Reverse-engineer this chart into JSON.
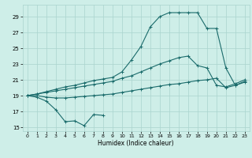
{
  "background_color": "#ceeee8",
  "grid_color": "#aad4ce",
  "line_color": "#1a6b6b",
  "xlabel": "Humidex (Indice chaleur)",
  "xlim": [
    -0.5,
    23.5
  ],
  "ylim": [
    14.5,
    30.5
  ],
  "xticks": [
    0,
    1,
    2,
    3,
    4,
    5,
    6,
    7,
    8,
    9,
    10,
    11,
    12,
    13,
    14,
    15,
    16,
    17,
    18,
    19,
    20,
    21,
    22,
    23
  ],
  "yticks": [
    15,
    17,
    19,
    21,
    23,
    25,
    27,
    29
  ],
  "line_zigzag_x": [
    0,
    1,
    2,
    3,
    4,
    5,
    6,
    7,
    8
  ],
  "line_zigzag_y": [
    19.0,
    18.8,
    18.3,
    17.2,
    15.7,
    15.8,
    15.2,
    16.6,
    16.5
  ],
  "line_low_x": [
    0,
    1,
    2,
    3,
    4,
    5,
    6,
    7,
    8,
    9,
    10,
    11,
    12,
    13,
    14,
    15,
    16,
    17,
    18,
    19,
    20,
    21,
    22,
    23
  ],
  "line_low_y": [
    19.0,
    19.0,
    18.8,
    18.7,
    18.7,
    18.8,
    18.9,
    19.0,
    19.1,
    19.2,
    19.4,
    19.6,
    19.8,
    20.0,
    20.2,
    20.4,
    20.5,
    20.7,
    20.9,
    21.0,
    21.2,
    20.0,
    20.3,
    20.7
  ],
  "line_mid_x": [
    0,
    1,
    2,
    3,
    4,
    5,
    6,
    7,
    8,
    9,
    10,
    11,
    12,
    13,
    14,
    15,
    16,
    17,
    18,
    19,
    20,
    21,
    22,
    23
  ],
  "line_mid_y": [
    19.0,
    19.2,
    19.4,
    19.6,
    19.8,
    20.0,
    20.2,
    20.4,
    20.6,
    20.8,
    21.2,
    21.5,
    22.0,
    22.5,
    23.0,
    23.4,
    23.8,
    24.0,
    22.8,
    22.5,
    20.3,
    20.1,
    20.5,
    21.0
  ],
  "line_top_x": [
    0,
    1,
    2,
    3,
    4,
    5,
    6,
    7,
    8,
    9,
    10,
    11,
    12,
    13,
    14,
    15,
    16,
    17,
    18,
    19,
    20,
    21,
    22,
    23
  ],
  "line_top_y": [
    19.0,
    19.2,
    19.5,
    19.8,
    20.1,
    20.3,
    20.6,
    20.9,
    21.1,
    21.3,
    22.0,
    23.5,
    25.2,
    27.7,
    29.0,
    29.5,
    29.5,
    29.5,
    29.5,
    27.5,
    27.5,
    22.5,
    20.3,
    20.8
  ]
}
